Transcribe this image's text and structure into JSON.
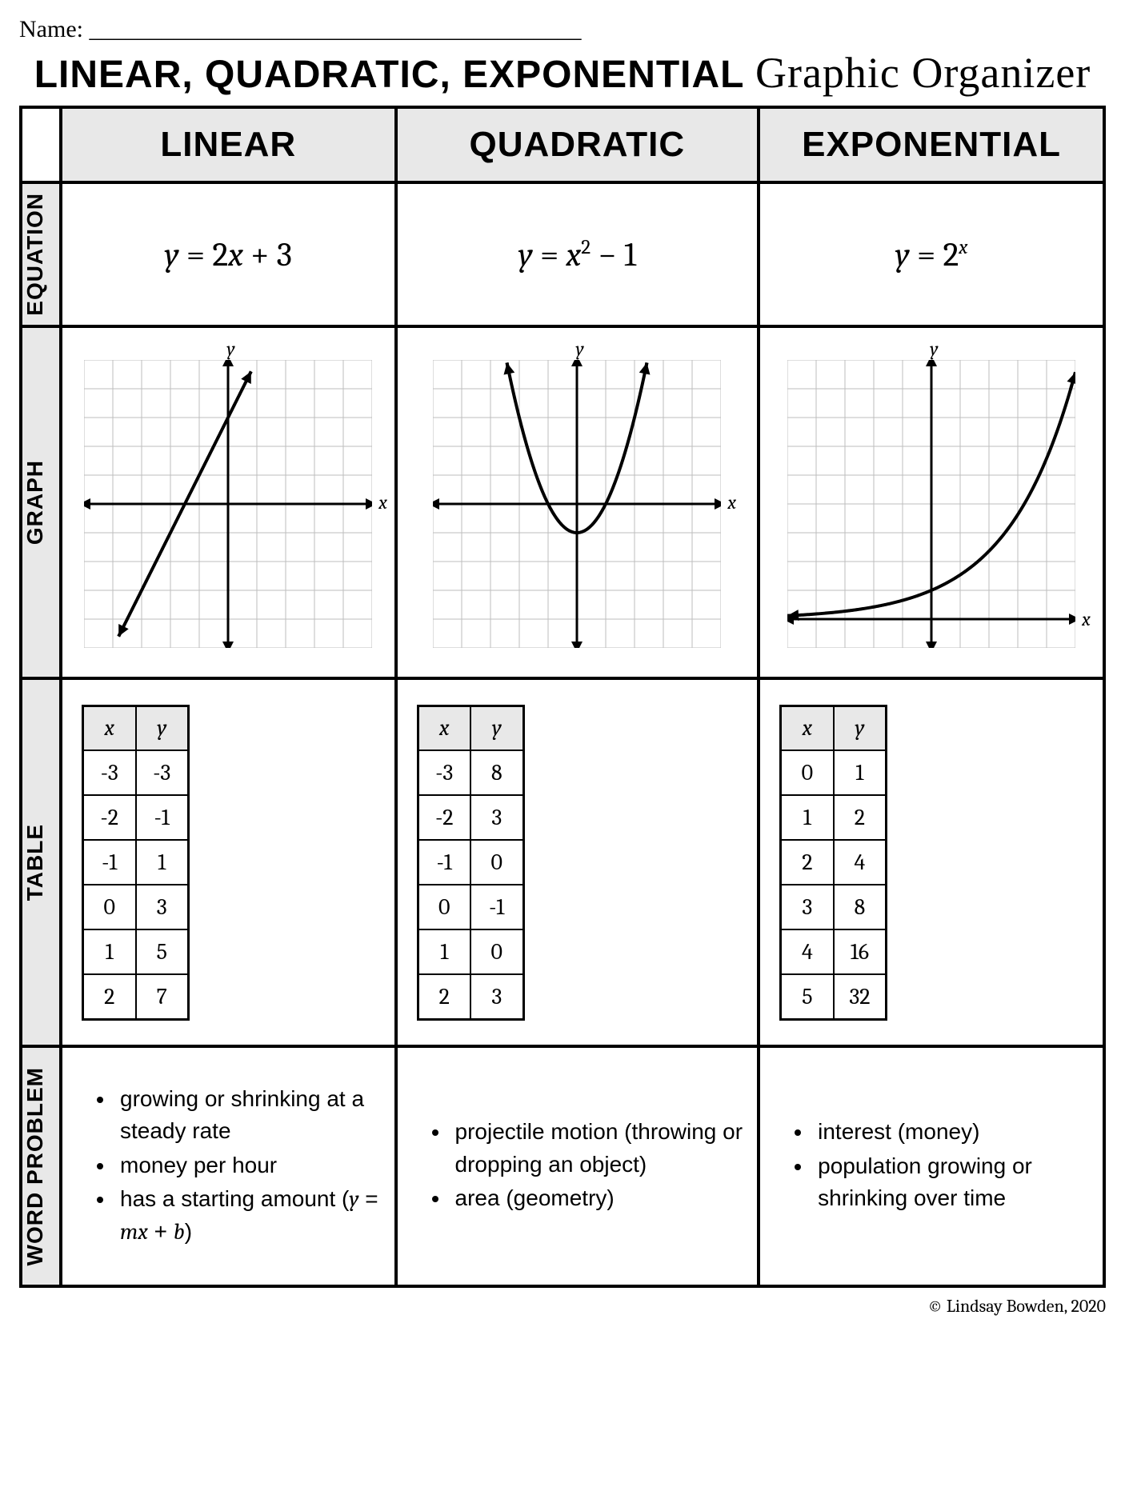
{
  "header": {
    "name_label": "Name:",
    "name_blank": "_________________________________________",
    "title_caps": "Linear, Quadratic, Exponential",
    "title_script": "Graphic Organizer"
  },
  "row_labels": {
    "equation": "Equation",
    "graph": "Graph",
    "table": "Table",
    "word": "Word Problem"
  },
  "columns": {
    "linear": {
      "header": "Linear"
    },
    "quadratic": {
      "header": "Quadratic"
    },
    "exponential": {
      "header": "Exponential"
    }
  },
  "equations": {
    "linear": {
      "html": "y = 2x + 3"
    },
    "quadratic": {
      "html": "y = x² − 1"
    },
    "exponential": {
      "html": "y = 2ˣ"
    }
  },
  "graphs": {
    "grid": {
      "cells": 10,
      "px": 360,
      "color": "#bdbdbd",
      "axis_color": "#000",
      "axis_width": 3,
      "curve_width": 4
    },
    "axis_labels": {
      "x": "x",
      "y": "y"
    }
  },
  "tables": {
    "headers": {
      "x": "x",
      "y": "y"
    },
    "linear": {
      "rows": [
        [
          "-3",
          "-3"
        ],
        [
          "-2",
          "-1"
        ],
        [
          "-1",
          "1"
        ],
        [
          "0",
          "3"
        ],
        [
          "1",
          "5"
        ],
        [
          "2",
          "7"
        ]
      ]
    },
    "quadratic": {
      "rows": [
        [
          "-3",
          "8"
        ],
        [
          "-2",
          "3"
        ],
        [
          "-1",
          "0"
        ],
        [
          "0",
          "-1"
        ],
        [
          "1",
          "0"
        ],
        [
          "2",
          "3"
        ]
      ]
    },
    "exponential": {
      "rows": [
        [
          "0",
          "1"
        ],
        [
          "1",
          "2"
        ],
        [
          "2",
          "4"
        ],
        [
          "3",
          "8"
        ],
        [
          "4",
          "16"
        ],
        [
          "5",
          "32"
        ]
      ]
    }
  },
  "word": {
    "linear": [
      "growing or shrinking at a steady rate",
      "money per hour",
      "has a starting amount (y = mx + b)"
    ],
    "quadratic": [
      "projectile motion (throwing or dropping an object)",
      "area (geometry)"
    ],
    "exponential": [
      "interest (money)",
      "population growing or shrinking over time"
    ]
  },
  "footer": "© Lindsay Bowden, 2020"
}
